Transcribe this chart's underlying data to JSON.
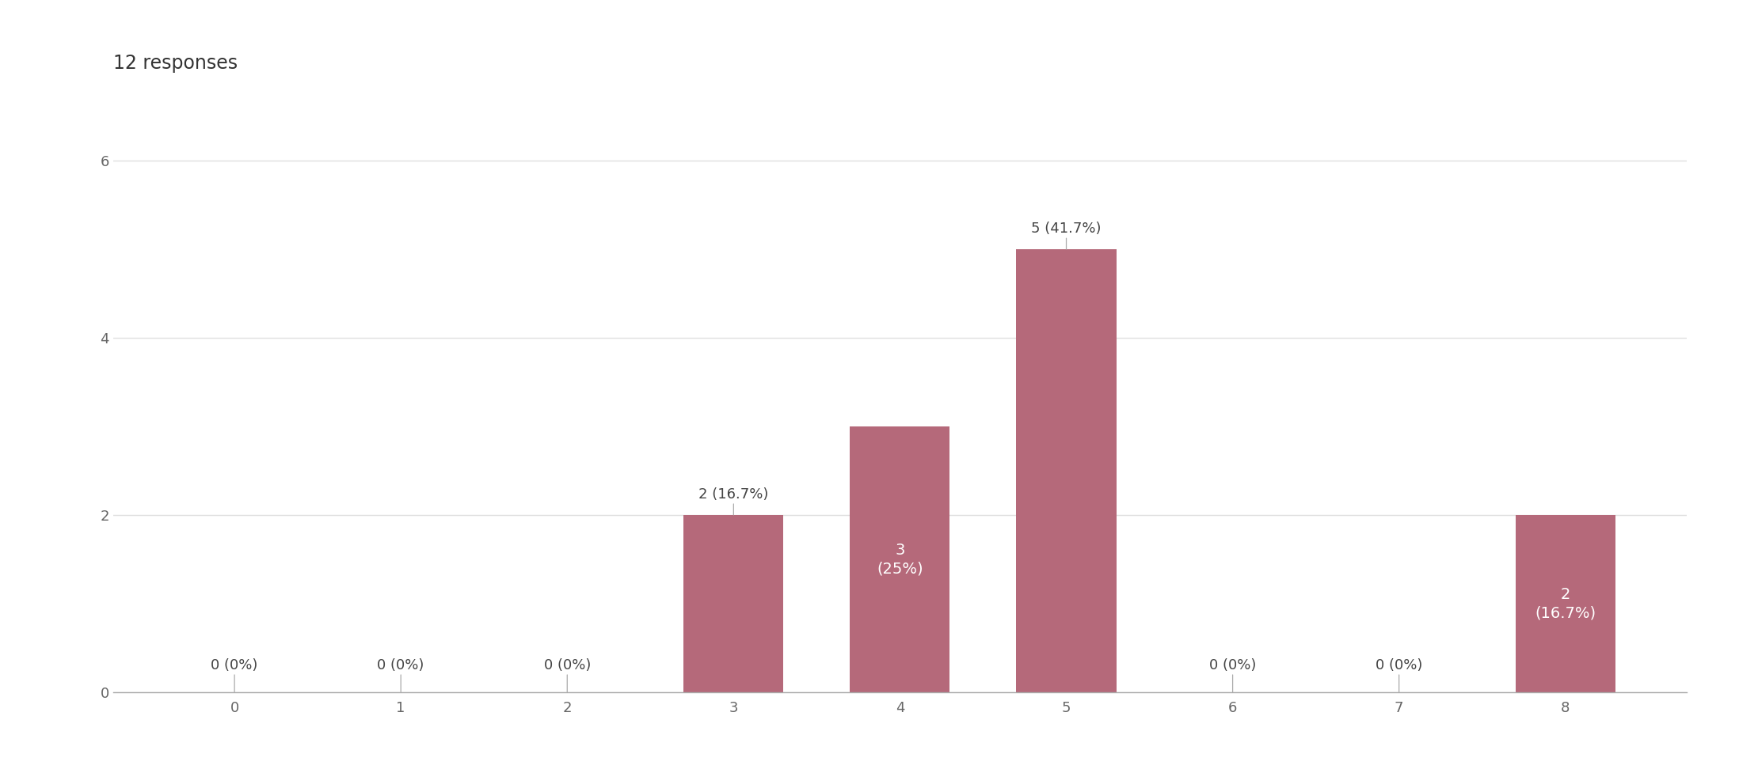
{
  "title": "12 responses",
  "categories": [
    0,
    1,
    2,
    3,
    4,
    5,
    6,
    7,
    8
  ],
  "values": [
    0,
    0,
    0,
    2,
    3,
    5,
    0,
    0,
    2
  ],
  "labels_above": [
    "0 (0%)",
    "0 (0%)",
    "0 (0%)",
    "2 (16.7%)",
    null,
    "5 (41.7%)",
    "0 (0%)",
    "0 (0%)",
    null
  ],
  "labels_inside": [
    null,
    null,
    null,
    null,
    "3\n(25%)",
    null,
    null,
    null,
    "2\n(16.7%)"
  ],
  "bar_color": "#b5697a",
  "background_color": "#ffffff",
  "ylim": [
    0,
    6.6
  ],
  "yticks": [
    0,
    2,
    4,
    6
  ],
  "title_fontsize": 17,
  "label_fontsize_above": 13,
  "label_fontsize_inside": 14,
  "tick_fontsize": 13,
  "grid_color": "#e0e0e0",
  "label_color_outside": "#444444",
  "label_color_inside": "#ffffff"
}
